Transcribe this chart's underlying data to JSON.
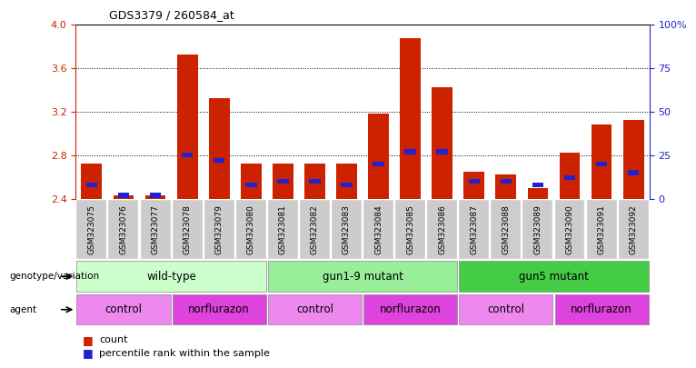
{
  "title": "GDS3379 / 260584_at",
  "samples": [
    "GSM323075",
    "GSM323076",
    "GSM323077",
    "GSM323078",
    "GSM323079",
    "GSM323080",
    "GSM323081",
    "GSM323082",
    "GSM323083",
    "GSM323084",
    "GSM323085",
    "GSM323086",
    "GSM323087",
    "GSM323088",
    "GSM323089",
    "GSM323090",
    "GSM323091",
    "GSM323092"
  ],
  "counts": [
    2.72,
    2.43,
    2.43,
    3.72,
    3.32,
    2.72,
    2.72,
    2.72,
    2.72,
    3.18,
    3.87,
    3.42,
    2.65,
    2.62,
    2.5,
    2.82,
    3.08,
    3.12
  ],
  "percentiles": [
    8,
    2,
    2,
    25,
    22,
    8,
    10,
    10,
    8,
    20,
    27,
    27,
    10,
    10,
    8,
    12,
    20,
    15
  ],
  "ymin": 2.4,
  "ymax": 4.0,
  "yticks": [
    2.4,
    2.8,
    3.2,
    3.6,
    4.0
  ],
  "right_yticks": [
    0,
    25,
    50,
    75,
    100
  ],
  "bar_color": "#cc2200",
  "blue_color": "#2222cc",
  "genotype_groups": [
    {
      "label": "wild-type",
      "start": 0,
      "end": 5,
      "color": "#ccffcc"
    },
    {
      "label": "gun1-9 mutant",
      "start": 6,
      "end": 11,
      "color": "#99ee99"
    },
    {
      "label": "gun5 mutant",
      "start": 12,
      "end": 17,
      "color": "#44cc44"
    }
  ],
  "agent_groups": [
    {
      "label": "control",
      "start": 0,
      "end": 2,
      "color": "#ee88ee"
    },
    {
      "label": "norflurazon",
      "start": 3,
      "end": 5,
      "color": "#dd44dd"
    },
    {
      "label": "control",
      "start": 6,
      "end": 8,
      "color": "#ee88ee"
    },
    {
      "label": "norflurazon",
      "start": 9,
      "end": 11,
      "color": "#dd44dd"
    },
    {
      "label": "control",
      "start": 12,
      "end": 14,
      "color": "#ee88ee"
    },
    {
      "label": "norflurazon",
      "start": 15,
      "end": 17,
      "color": "#dd44dd"
    }
  ],
  "legend_count_label": "count",
  "legend_pct_label": "percentile rank within the sample",
  "left_axis_color": "#cc2200",
  "right_axis_color": "#2222cc"
}
